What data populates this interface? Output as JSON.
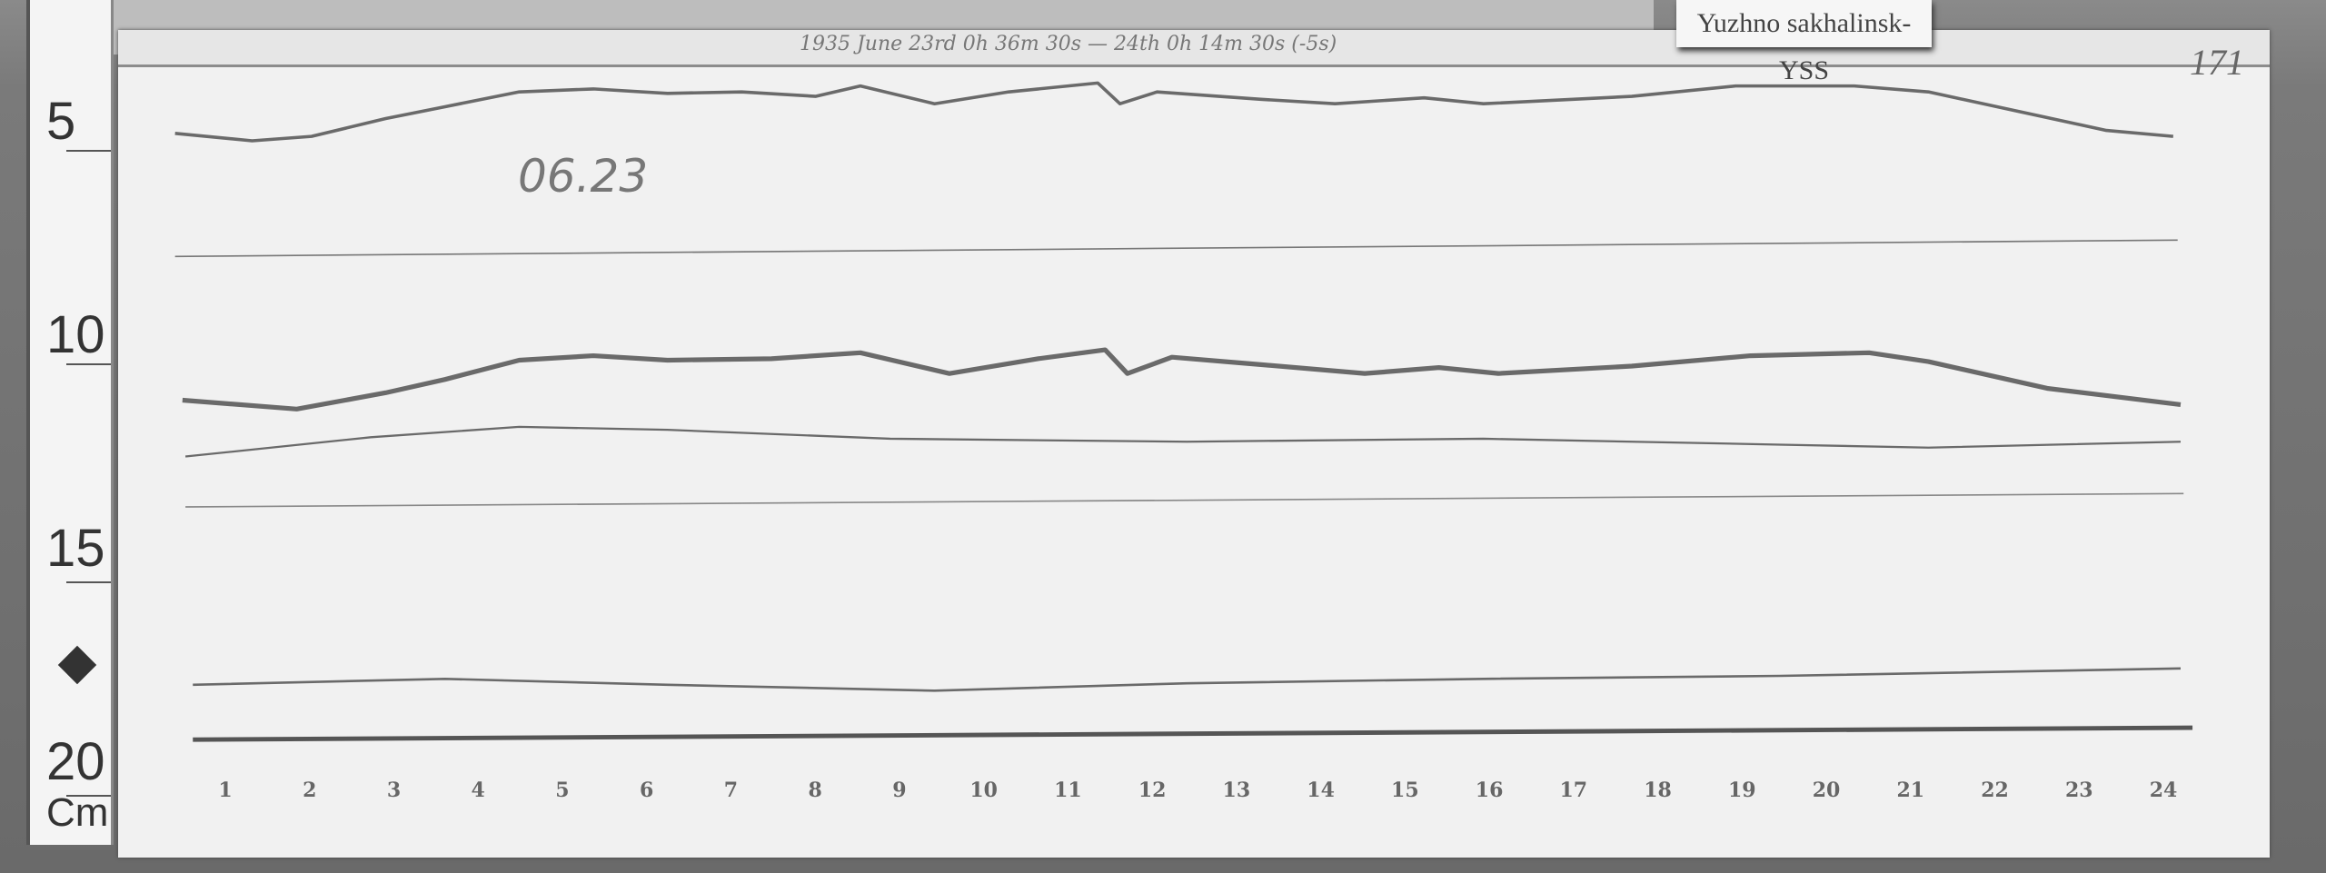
{
  "station_label": "Yuzhno sakhalinsk-YSS",
  "header_text": "1935 June 23rd 0h 36m 30s — 24th 0h 14m 30s (-5s)",
  "sheet_number": "171",
  "date_note": "06.23",
  "ruler": {
    "unit": "Cm",
    "labels": [
      "5",
      "10",
      "15",
      "20"
    ]
  },
  "hour_labels": [
    "1",
    "2",
    "3",
    "4",
    "5",
    "6",
    "7",
    "8",
    "9",
    "10",
    "11",
    "12",
    "13",
    "14",
    "15",
    "16",
    "17",
    "18",
    "19",
    "20",
    "21",
    "22",
    "23",
    "24"
  ],
  "colors": {
    "paper": "#f1f1f1",
    "trace": "#6a6a6a",
    "board": "#7a7a7a"
  }
}
